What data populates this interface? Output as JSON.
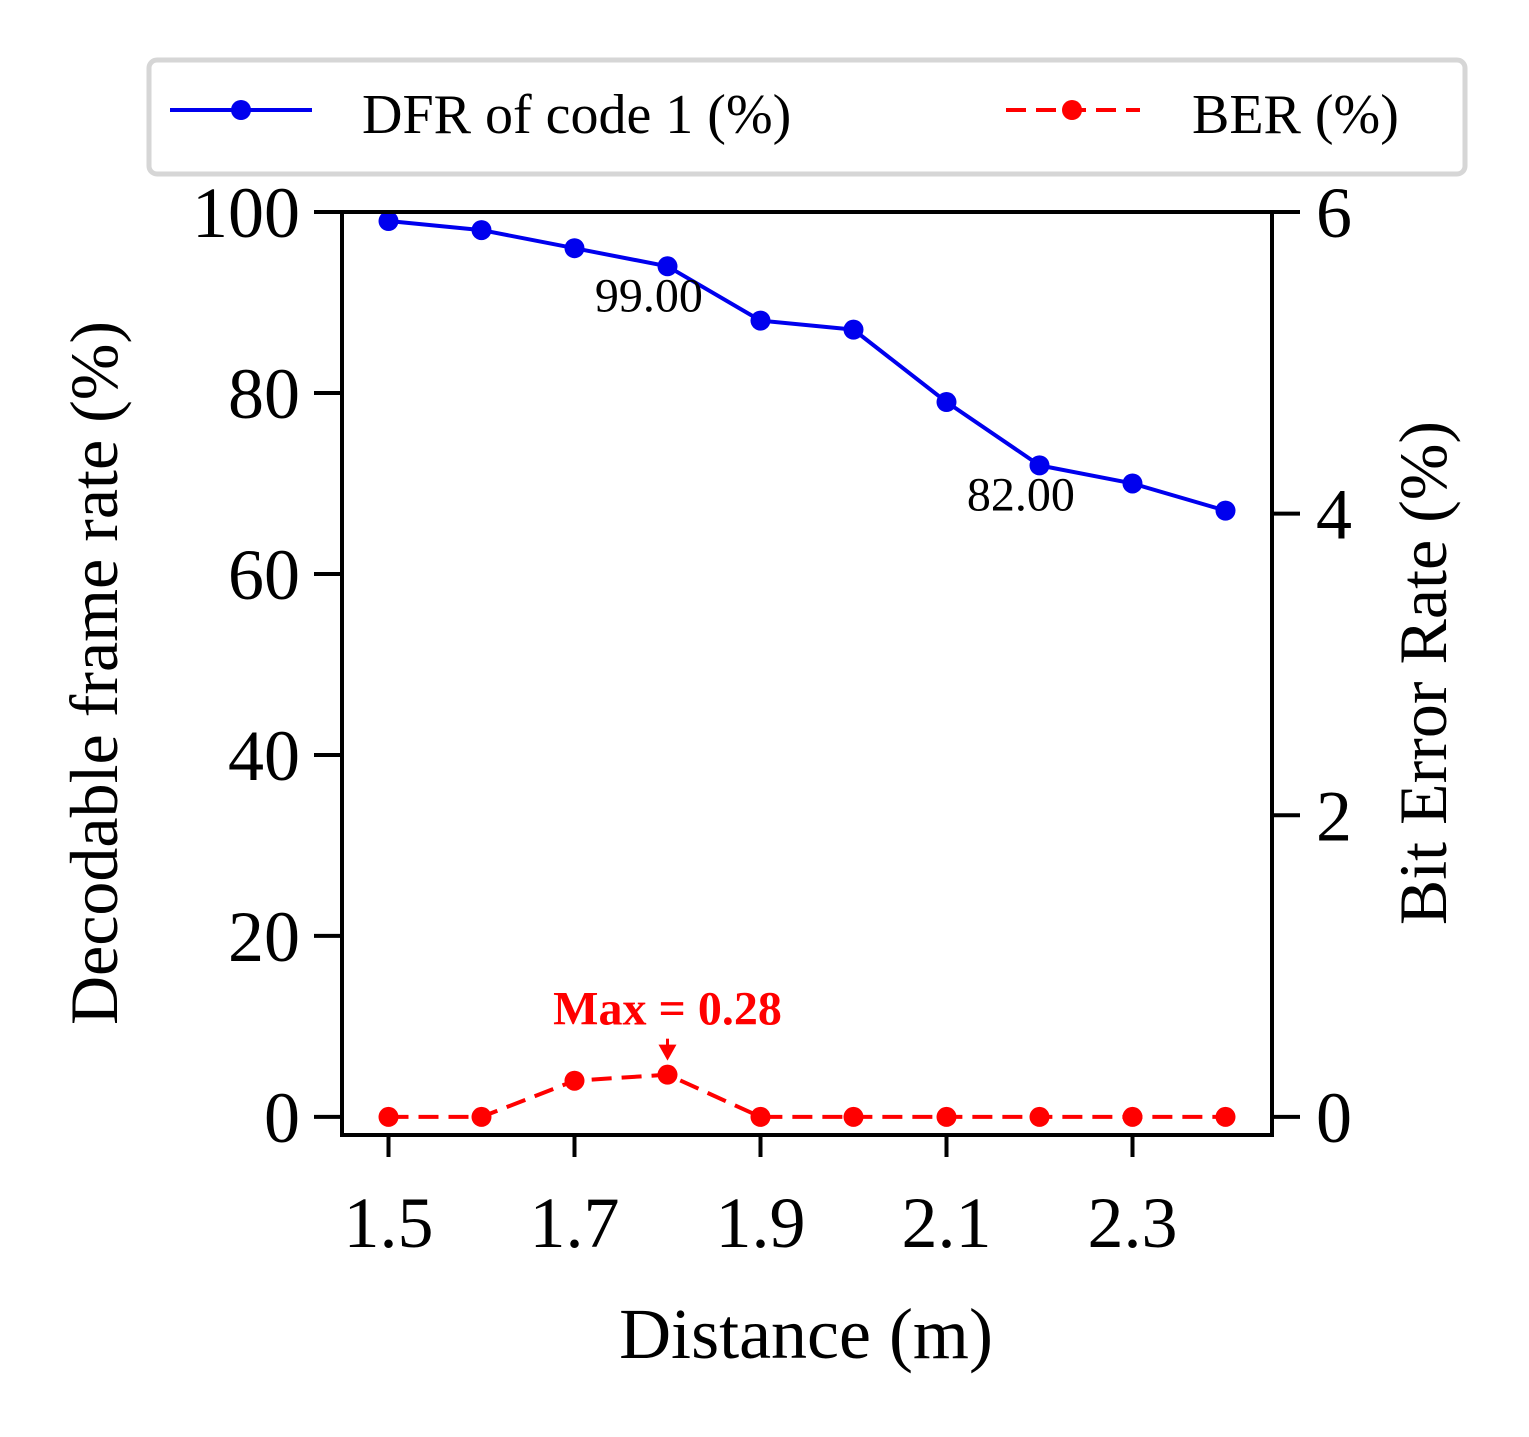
{
  "chart_data": {
    "type": "line",
    "x": [
      1.5,
      1.6,
      1.7,
      1.8,
      1.9,
      2.0,
      2.1,
      2.2,
      2.3,
      2.4
    ],
    "xlabel": "Distance (m)",
    "xlim": [
      1.45,
      2.45
    ],
    "xticks": [
      1.5,
      1.7,
      1.9,
      2.1,
      2.3
    ],
    "xtick_labels": [
      "1.5",
      "1.7",
      "1.9",
      "2.1",
      "2.3"
    ],
    "y_left": {
      "label": "Decodable frame rate (%)",
      "lim": [
        -2,
        100
      ],
      "ticks": [
        0,
        20,
        40,
        60,
        80,
        100
      ],
      "tick_labels": [
        "0",
        "20",
        "40",
        "60",
        "80",
        "100"
      ]
    },
    "y_right": {
      "label": "Bit Error Rate (%)",
      "lim": [
        -0.12,
        6.0
      ],
      "ticks": [
        0,
        2,
        4,
        6
      ],
      "tick_labels": [
        "0",
        "2",
        "4",
        "6"
      ]
    },
    "series": [
      {
        "name": "DFR of code 1 (%)",
        "axis": "left",
        "color": "#0000ee",
        "linestyle": "solid",
        "values": [
          99,
          98,
          96,
          94,
          88,
          87,
          79,
          72,
          70,
          67
        ]
      },
      {
        "name": "BER (%)",
        "axis": "right",
        "color": "#ff0000",
        "linestyle": "dashed",
        "values": [
          0.0,
          0.0,
          0.24,
          0.28,
          0.0,
          0.0,
          0.0,
          0.0,
          0.0,
          0.0
        ]
      }
    ],
    "annotations": [
      {
        "text": "99.00",
        "x": 1.78,
        "y": 89,
        "axis": "left",
        "color": "#000000"
      },
      {
        "text": "82.00",
        "x": 2.18,
        "y": 67,
        "axis": "left",
        "color": "#000000"
      },
      {
        "text": "Max = 0.28",
        "x": 1.8,
        "y": 0.28,
        "axis": "right",
        "color": "#ff0000",
        "bold": true,
        "arrow": true
      }
    ],
    "legend": {
      "placement": "top, above plot",
      "entries": [
        "DFR of code 1 (%)",
        "BER (%)"
      ]
    },
    "grid": false
  }
}
